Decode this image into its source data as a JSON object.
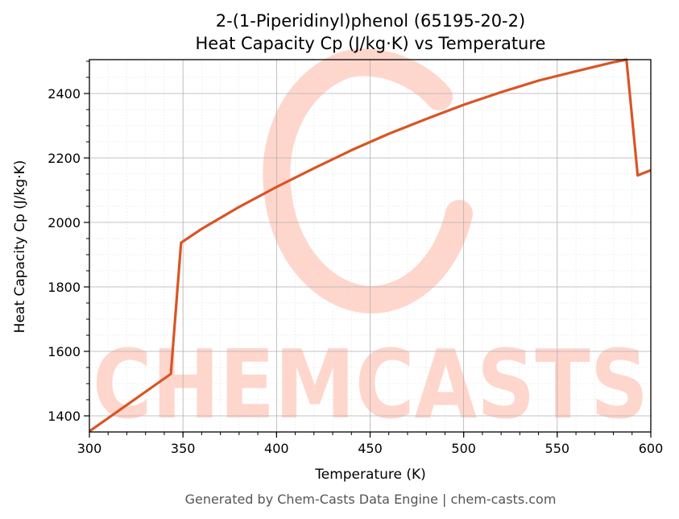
{
  "chart_data": {
    "type": "line",
    "title": "2-(1-Piperidinyl)phenol (65195-20-2)",
    "subtitle": "Heat Capacity Cp (J/kg·K) vs Temperature",
    "xlabel": "Temperature (K)",
    "ylabel": "Heat Capacity Cp (J/kg·K)",
    "xlim": [
      300,
      600
    ],
    "ylim": [
      1350,
      2505
    ],
    "xticks": [
      300,
      350,
      400,
      450,
      500,
      550,
      600
    ],
    "yticks": [
      1400,
      1600,
      1800,
      2000,
      2200,
      2400
    ],
    "grid": true,
    "legend": "none",
    "series": [
      {
        "color": "#d95525",
        "x": [
          300,
          343.5,
          349,
          360,
          380,
          400,
          420,
          440,
          460,
          480,
          500,
          520,
          540,
          560,
          580,
          587,
          593,
          600
        ],
        "y": [
          1352,
          1530,
          1937,
          1980,
          2048,
          2110,
          2168,
          2224,
          2275,
          2321,
          2365,
          2404,
          2440,
          2469,
          2497,
          2505,
          2146,
          2162
        ]
      }
    ]
  },
  "watermark": {
    "text": "CHEMCASTS",
    "color": "#ffd6cc"
  },
  "footer": "Generated by Chem-Casts Data Engine | chem-casts.com"
}
